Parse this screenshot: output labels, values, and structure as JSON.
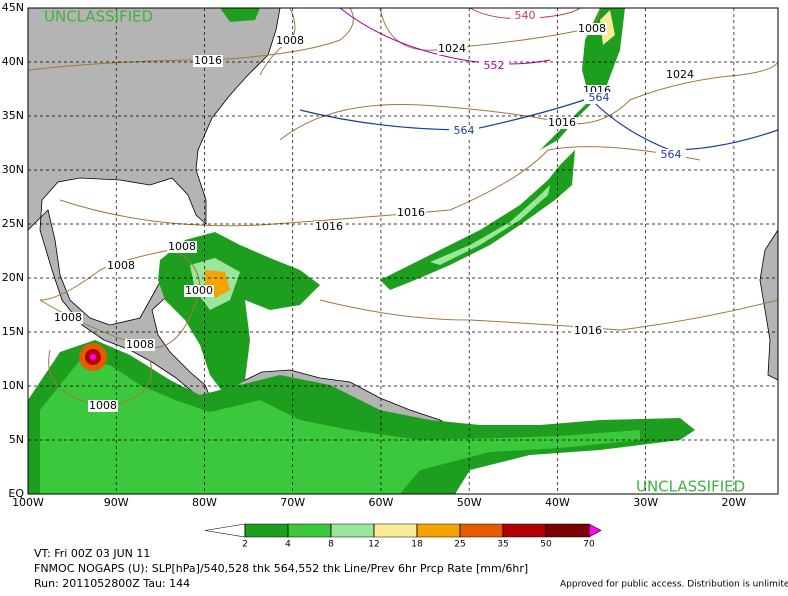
{
  "map": {
    "classification": "UNCLASSIFIED",
    "lonlim": [
      -100,
      -15
    ],
    "latlim": [
      0,
      45
    ],
    "lon_ticks": [
      {
        "value": -100,
        "label": "100W"
      },
      {
        "value": -90,
        "label": "90W"
      },
      {
        "value": -80,
        "label": "80W"
      },
      {
        "value": -70,
        "label": "70W"
      },
      {
        "value": -60,
        "label": "60W"
      },
      {
        "value": -50,
        "label": "50W"
      },
      {
        "value": -40,
        "label": "40W"
      },
      {
        "value": -30,
        "label": "30W"
      },
      {
        "value": -20,
        "label": "20W"
      }
    ],
    "lat_ticks": [
      {
        "value": 45,
        "label": "45N"
      },
      {
        "value": 40,
        "label": "40N"
      },
      {
        "value": 35,
        "label": "35N"
      },
      {
        "value": 30,
        "label": "30N"
      },
      {
        "value": 25,
        "label": "25N"
      },
      {
        "value": 20,
        "label": "20N"
      },
      {
        "value": 15,
        "label": "15N"
      },
      {
        "value": 10,
        "label": "10N"
      },
      {
        "value": 5,
        "label": "5N"
      },
      {
        "value": 0,
        "label": "EQ"
      }
    ],
    "contour_labels": [
      1008,
      1016,
      540,
      1024,
      552,
      1008,
      1024,
      1016,
      564,
      564,
      1016,
      564,
      1016,
      1016,
      1008,
      1008,
      1000,
      1008,
      1008,
      1008,
      1016
    ]
  },
  "colorbar": {
    "levels": [
      2,
      4,
      8,
      12,
      18,
      25,
      35,
      50,
      70
    ],
    "colors": [
      "#ffffff",
      "#1e9e1e",
      "#3cc83c",
      "#9ae69a",
      "#faeb9b",
      "#f5a300",
      "#e65a00",
      "#b40000",
      "#7a0000",
      "#ff00ff"
    ]
  },
  "footer": {
    "valid_time": "VT: Fri 00Z 03 JUN 11",
    "product": "FNMOC NOGAPS (U): SLP[hPa]/540,528 thk 564,552 thk Line/Prev 6hr Prcp Rate [mm/6hr]",
    "run": "Run: 2011052800Z Tau: 144",
    "disclaimer": "Approved for public access. Distribution is unlimited."
  }
}
